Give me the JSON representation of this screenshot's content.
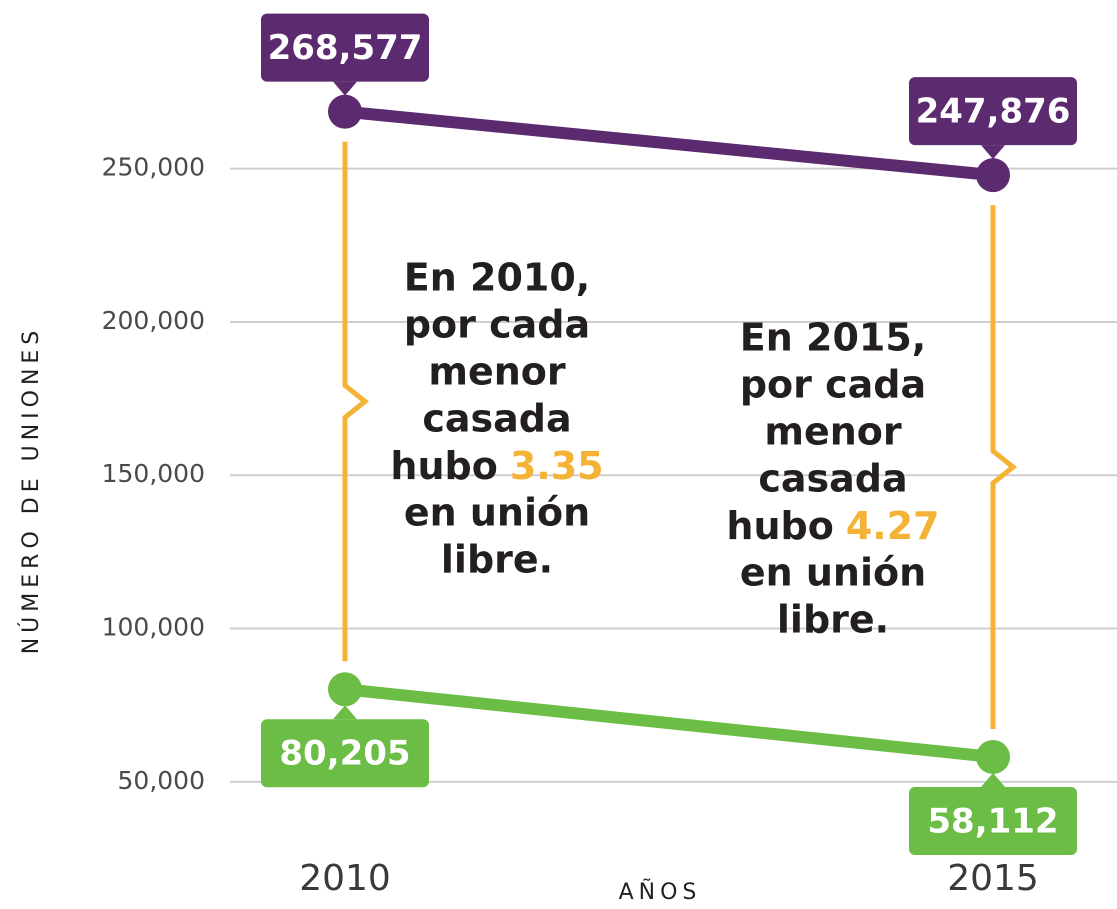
{
  "chart_data": {
    "type": "line",
    "categories": [
      "2010",
      "2015"
    ],
    "x_label": "AÑOS",
    "y_label": "NÚMERO DE UNIONES",
    "ylim": [
      25000,
      305000
    ],
    "yticks": [
      {
        "value": 50000,
        "label": "50,000"
      },
      {
        "value": 100000,
        "label": "100,000"
      },
      {
        "value": 150000,
        "label": "150,000"
      },
      {
        "value": 200000,
        "label": "200,000"
      },
      {
        "value": 250000,
        "label": "250,000"
      }
    ],
    "grid": true,
    "series": [
      {
        "color": "#5c2a6e",
        "values": [
          268577,
          247876
        ],
        "value_labels": [
          "268,577",
          "247,876"
        ],
        "label_position": "above"
      },
      {
        "color": "#6bbd45",
        "values": [
          80205,
          58112
        ],
        "value_labels": [
          "80,205",
          "58,112"
        ],
        "label_position": "below"
      }
    ],
    "bracket_color": "#f5b335",
    "annotations": [
      {
        "lines": [
          "En 2010,",
          "por cada",
          "menor",
          "casada"
        ],
        "ratio_prefix": "hubo",
        "ratio": 3.35,
        "after": [
          "en unión",
          "libre."
        ]
      },
      {
        "lines": [
          "En 2015,",
          "por cada",
          "menor",
          "casada"
        ],
        "ratio_prefix": "hubo",
        "ratio": 4.27,
        "after": [
          "en unión",
          "libre."
        ]
      }
    ]
  }
}
